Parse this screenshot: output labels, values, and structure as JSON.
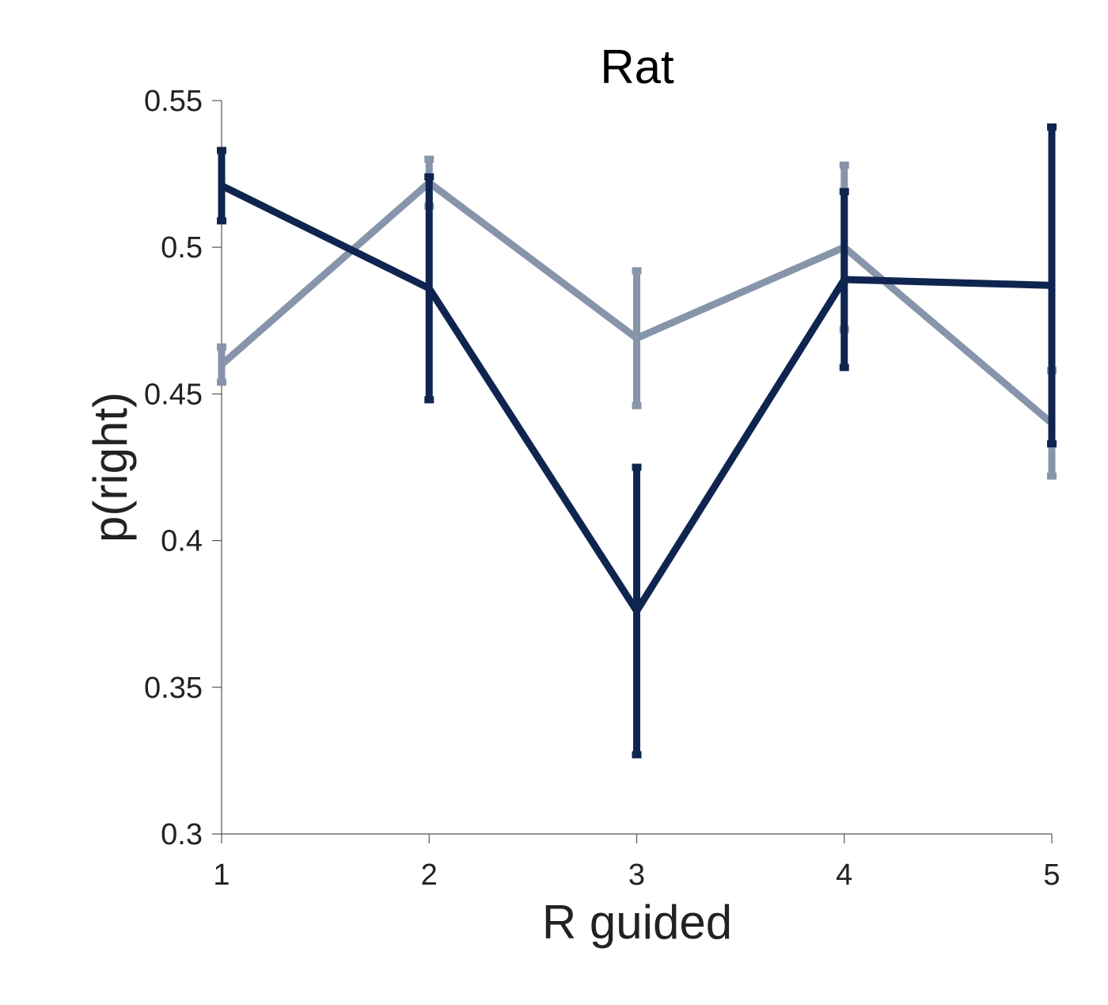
{
  "chart_data": {
    "type": "line",
    "title": "Rat",
    "xlabel": "R guided",
    "ylabel": "p(right)",
    "x": [
      1,
      2,
      3,
      4,
      5
    ],
    "xlim": [
      1,
      5
    ],
    "ylim": [
      0.3,
      0.55
    ],
    "x_ticks": [
      "1",
      "2",
      "3",
      "4",
      "5"
    ],
    "y_ticks": [
      "0.3",
      "0.35",
      "0.4",
      "0.45",
      "0.5",
      "0.55"
    ],
    "grid": false,
    "legend": false,
    "series": [
      {
        "color": "#8795ab",
        "values": [
          0.46,
          0.522,
          0.469,
          0.5,
          0.44
        ],
        "error": [
          0.006,
          0.008,
          0.023,
          0.028,
          0.018
        ]
      },
      {
        "color": "#0f2550",
        "values": [
          0.521,
          0.486,
          0.376,
          0.489,
          0.487
        ],
        "error": [
          0.012,
          0.038,
          0.049,
          0.03,
          0.054
        ]
      }
    ]
  }
}
